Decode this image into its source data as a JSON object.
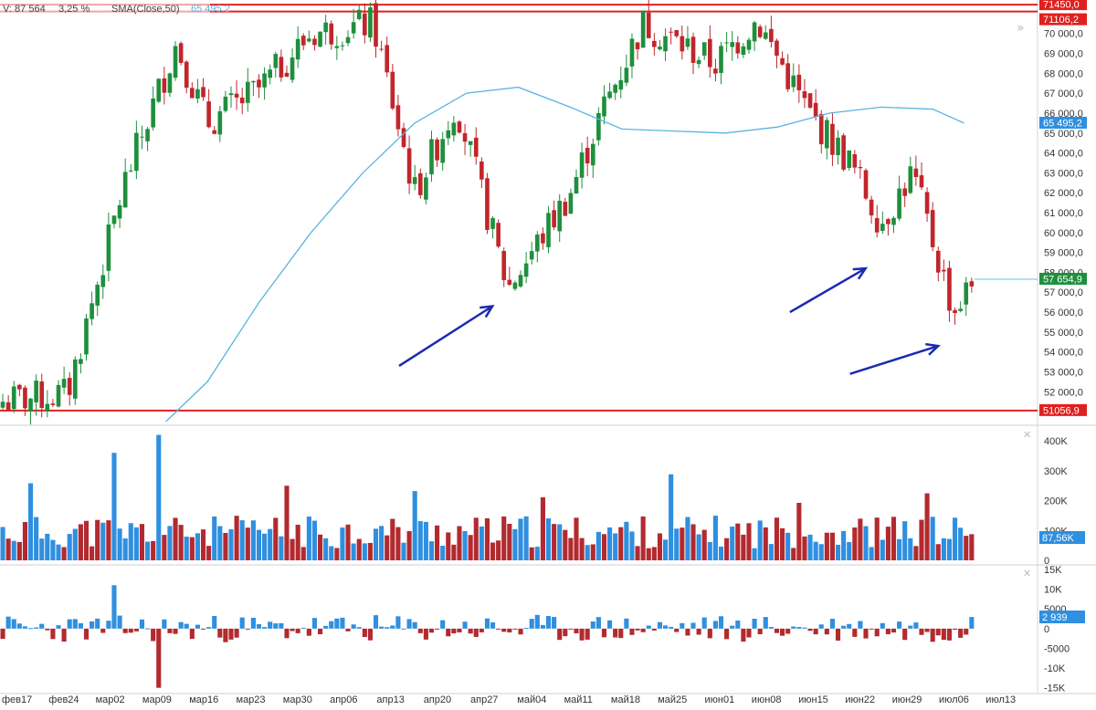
{
  "header": {
    "volume_text": "V: 87 564",
    "change_text": "3,25 %",
    "sma_label": "SMA(Close,50)",
    "sma_value": "65 495,2"
  },
  "colors": {
    "up": "#1e8f3c",
    "down": "#c0262b",
    "vol_up": "#2f8fe0",
    "vol_down": "#b22a2f",
    "sma": "#5ab4e0",
    "level": "#e02020",
    "arrow": "#1a2ab0",
    "current_price": "#8fd0ef"
  },
  "chart_data": [
    {
      "type": "candlestick",
      "panel": "price",
      "ylim": [
        50500,
        71500
      ],
      "y_ticks": [
        52000,
        53000,
        54000,
        55000,
        56000,
        57000,
        58000,
        59000,
        60000,
        61000,
        62000,
        63000,
        64000,
        65000,
        66000,
        67000,
        68000,
        69000,
        70000
      ],
      "y_tick_labels": [
        "52 000,0",
        "53 000,0",
        "54 000,0",
        "55 000,0",
        "56 000,0",
        "57 000,0",
        "58 000,0",
        "59 000,0",
        "60 000,0",
        "61 000,0",
        "62 000,0",
        "63 000,0",
        "64 000,0",
        "65 000,0",
        "66 000,0",
        "67 000,0",
        "68 000,0",
        "69 000,0",
        "70 000,0"
      ],
      "x_tick_labels": [
        "фев17",
        "фев24",
        "мар02",
        "мар09",
        "мар16",
        "мар23",
        "мар30",
        "апр06",
        "апр13",
        "апр20",
        "апр27",
        "май04",
        "май11",
        "май18",
        "май25",
        "июн01",
        "июн08",
        "июн15",
        "июн22",
        "июн29",
        "июл06",
        "июл13"
      ],
      "price_chips": [
        {
          "label": "71450,0",
          "value": 71450,
          "color": "#e02020"
        },
        {
          "label": "71106,2",
          "value": 71106,
          "color": "#e02020"
        },
        {
          "label": "65 495,2",
          "value": 65495,
          "color": "#2f8fe0"
        },
        {
          "label": "57 654,9",
          "value": 57655,
          "color": "#1e8f3c"
        },
        {
          "label": "51056,9",
          "value": 51057,
          "color": "#e02020"
        }
      ],
      "horizontal_levels": [
        71450,
        71106,
        51057
      ],
      "current_price": 57655,
      "sma": {
        "name": "SMA(Close,50)",
        "points": [
          [
            0.16,
            50500
          ],
          [
            0.2,
            52500
          ],
          [
            0.25,
            56500
          ],
          [
            0.3,
            60000
          ],
          [
            0.35,
            63000
          ],
          [
            0.4,
            65500
          ],
          [
            0.45,
            67000
          ],
          [
            0.5,
            67300
          ],
          [
            0.55,
            66300
          ],
          [
            0.6,
            65200
          ],
          [
            0.65,
            65100
          ],
          [
            0.7,
            65000
          ],
          [
            0.75,
            65300
          ],
          [
            0.8,
            66000
          ],
          [
            0.85,
            66300
          ],
          [
            0.9,
            66200
          ],
          [
            0.93,
            65500
          ]
        ]
      },
      "candles_segments": [
        {
          "from": 0.0,
          "to": 0.065,
          "start": 51500,
          "end": 51900
        },
        {
          "from": 0.065,
          "to": 0.12,
          "start": 51900,
          "end": 62500
        },
        {
          "from": 0.12,
          "to": 0.17,
          "start": 62500,
          "end": 69500
        },
        {
          "from": 0.17,
          "to": 0.2,
          "start": 69500,
          "end": 65500
        },
        {
          "from": 0.2,
          "to": 0.25,
          "start": 65500,
          "end": 67200
        },
        {
          "from": 0.25,
          "to": 0.3,
          "start": 67200,
          "end": 70000
        },
        {
          "from": 0.3,
          "to": 0.36,
          "start": 70000,
          "end": 70500
        },
        {
          "from": 0.36,
          "to": 0.4,
          "start": 70500,
          "end": 62000
        },
        {
          "from": 0.4,
          "to": 0.44,
          "start": 62000,
          "end": 66500
        },
        {
          "from": 0.44,
          "to": 0.49,
          "start": 66500,
          "end": 57200
        },
        {
          "from": 0.49,
          "to": 0.55,
          "start": 57200,
          "end": 62000
        },
        {
          "from": 0.55,
          "to": 0.58,
          "start": 62000,
          "end": 66000
        },
        {
          "from": 0.58,
          "to": 0.62,
          "start": 66000,
          "end": 70500
        },
        {
          "from": 0.62,
          "to": 0.69,
          "start": 70500,
          "end": 68500
        },
        {
          "from": 0.69,
          "to": 0.73,
          "start": 68500,
          "end": 70700
        },
        {
          "from": 0.73,
          "to": 0.78,
          "start": 70700,
          "end": 66000
        },
        {
          "from": 0.78,
          "to": 0.82,
          "start": 66000,
          "end": 63500
        },
        {
          "from": 0.82,
          "to": 0.85,
          "start": 63500,
          "end": 60500
        },
        {
          "from": 0.85,
          "to": 0.88,
          "start": 60500,
          "end": 63000
        },
        {
          "from": 0.88,
          "to": 0.92,
          "start": 63000,
          "end": 56000
        },
        {
          "from": 0.92,
          "to": 0.94,
          "start": 56000,
          "end": 57655
        }
      ],
      "arrows": [
        {
          "from": [
            0.385,
            53300
          ],
          "to": [
            0.475,
            56300
          ]
        },
        {
          "from": [
            0.762,
            56000
          ],
          "to": [
            0.835,
            58200
          ]
        },
        {
          "from": [
            0.82,
            52900
          ],
          "to": [
            0.905,
            54300
          ]
        }
      ]
    },
    {
      "type": "bar",
      "panel": "volume",
      "ylim": [
        0,
        440
      ],
      "y_ticks": [
        0,
        100,
        200,
        300,
        400
      ],
      "y_tick_labels": [
        "0",
        "100K",
        "200K",
        "300K",
        "400K"
      ],
      "current_value_label": "87,56K",
      "current_value": 87.56
    },
    {
      "type": "bar",
      "panel": "oscillator",
      "ylim": [
        -16000,
        15000
      ],
      "y_ticks": [
        -15000,
        -10000,
        -5000,
        0,
        5000,
        10000,
        15000
      ],
      "y_tick_labels": [
        "-15K",
        "-10K",
        "-5000",
        "0",
        "5000",
        "10K",
        "15K"
      ],
      "current_value_label": "2 939",
      "current_value": 2939
    }
  ]
}
